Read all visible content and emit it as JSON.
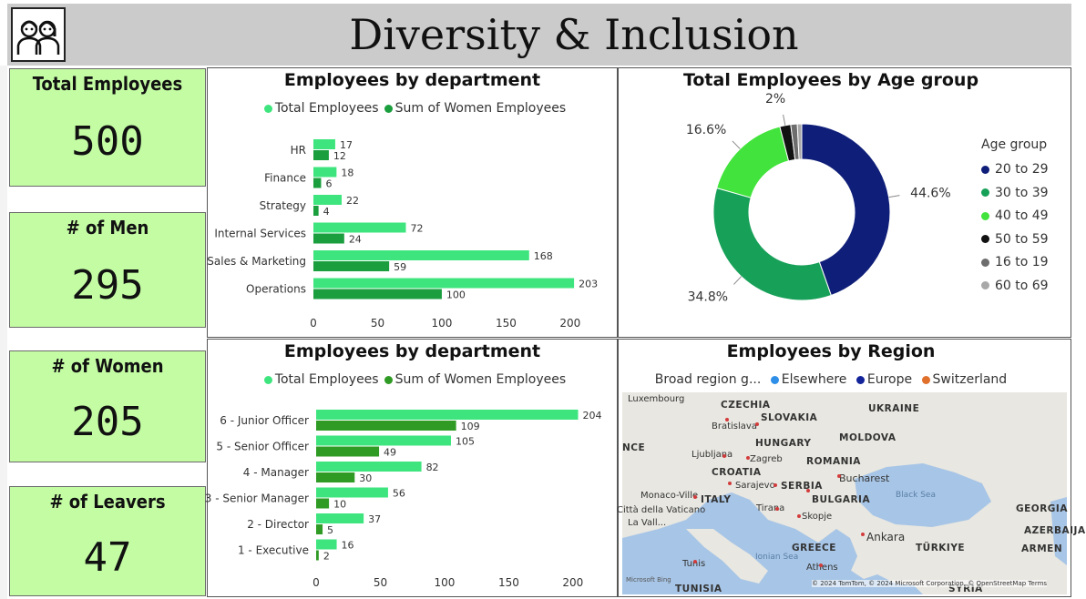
{
  "header": {
    "title": "Diversity & Inclusion"
  },
  "kpis": [
    {
      "label": "Total Employees",
      "value": "500"
    },
    {
      "label": "# of Men",
      "value": "295"
    },
    {
      "label": "# of Women",
      "value": "205"
    },
    {
      "label": "# of Leavers",
      "value": "47"
    }
  ],
  "colors": {
    "total_series": "#3ee57e",
    "women_series_dept": "#1b9e3e",
    "women_series_grade": "#2f9b24",
    "kpi_bg": "#c4fca4",
    "header_bg": "#cbcbcb"
  },
  "legend_labels": {
    "total": "Total Employees",
    "women": "Sum of Women Employees"
  },
  "chart_data": [
    {
      "type": "bar",
      "orientation": "horizontal",
      "title": "Employees by department",
      "categories": [
        "HR",
        "Finance",
        "Strategy",
        "Internal Services",
        "Sales & Marketing",
        "Operations"
      ],
      "series": [
        {
          "name": "Total Employees",
          "values": [
            17,
            18,
            22,
            72,
            168,
            203
          ]
        },
        {
          "name": "Sum of Women Employees",
          "values": [
            12,
            6,
            4,
            24,
            59,
            100
          ]
        }
      ],
      "xticks": [
        0,
        50,
        100,
        150,
        200
      ],
      "xlim": [
        0,
        215
      ],
      "legend_position": "top"
    },
    {
      "type": "bar",
      "orientation": "horizontal",
      "title": "Employees by department",
      "categories": [
        "6 - Junior Officer",
        "5 - Senior Officer",
        "4 - Manager",
        "3 - Senior Manager",
        "2 - Director",
        "1 - Executive"
      ],
      "series": [
        {
          "name": "Total Employees",
          "values": [
            204,
            105,
            82,
            56,
            37,
            16
          ]
        },
        {
          "name": "Sum of Women Employees",
          "values": [
            109,
            49,
            30,
            10,
            5,
            2
          ]
        }
      ],
      "xticks": [
        0,
        50,
        100,
        150,
        200
      ],
      "xlim": [
        0,
        215
      ],
      "legend_position": "top"
    },
    {
      "type": "pie",
      "donut": true,
      "title": "Total Employees by Age group",
      "legend_title": "Age group",
      "legend_position": "right",
      "slices": [
        {
          "label": "20 to 29",
          "value": 44.6,
          "display": "44.6%",
          "color": "#0f1e78"
        },
        {
          "label": "30 to 39",
          "value": 34.8,
          "display": "34.8%",
          "color": "#17a058"
        },
        {
          "label": "40 to 49",
          "value": 16.6,
          "display": "16.6%",
          "color": "#42e33c"
        },
        {
          "label": "50 to 59",
          "value": 2.0,
          "display": "2%",
          "color": "#111111"
        },
        {
          "label": "16 to 19",
          "value": 1.2,
          "display": "",
          "color": "#6d6d6d"
        },
        {
          "label": "60 to 69",
          "value": 0.8,
          "display": "",
          "color": "#a8a8a8"
        }
      ]
    }
  ],
  "region_panel": {
    "title": "Employees by Region",
    "legend_title": "Broad region g...",
    "legend_items": [
      {
        "label": "Elsewhere",
        "color": "#2f8fe8"
      },
      {
        "label": "Europe",
        "color": "#13239a"
      },
      {
        "label": "Switzerland",
        "color": "#e0702c"
      }
    ],
    "map_labels": [
      "Luxembourg",
      "CZECHIA",
      "SLOVAKIA",
      "UKRAINE",
      "Bratislava",
      "NCE",
      "HUNGARY",
      "MOLDOVA",
      "Ljubljana",
      "Zagreb",
      "ROMANIA",
      "CROATIA",
      "Bucharest",
      "Sarajevo",
      "SERBIA",
      "Monaco-Ville",
      "ITALY",
      "BULGARIA",
      "Black Sea",
      "GEORGIA",
      "Città della Vaticano",
      "Tirana",
      "Skopje",
      "AZERBAIJA",
      "La Vall...",
      "Ankara",
      "ARMEN",
      "GREECE",
      "TÜRKIYE",
      "Ionian Sea",
      "Tunis",
      "Athens",
      "TUNISIA",
      "SYRIA"
    ],
    "attribution": "© 2024 TomTom, © 2024 Microsoft Corporation, © OpenStreetMap  Terms",
    "map_brand": "Microsoft Bing"
  }
}
